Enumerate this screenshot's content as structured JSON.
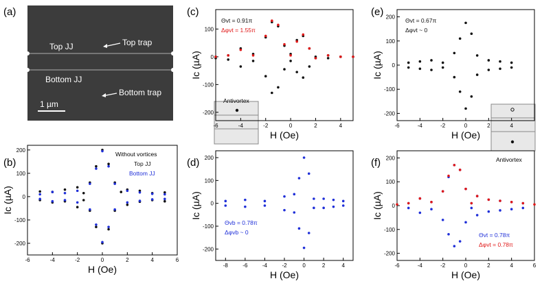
{
  "colors": {
    "black": "#111111",
    "blue": "#1f2fd8",
    "red": "#e01818",
    "sem_bg": "#3c3c3c"
  },
  "panels": {
    "a": {
      "letter": "(a)",
      "label_top_jj": "Top JJ",
      "label_top_trap": "Top trap",
      "label_bottom_jj": "Bottom JJ",
      "label_bottom_trap": "Bottom trap",
      "scale_bar": "1 µm"
    },
    "b": {
      "letter": "(b)",
      "legend_title": "Without vortices",
      "legend_top": "Top JJ",
      "legend_bottom": "Bottom JJ"
    },
    "c": {
      "letter": "(c)",
      "theta": "Θvt = 0.91π",
      "dphi": "Δφvt = 1.55π",
      "inset": "Antivortex"
    },
    "d": {
      "letter": "(d)",
      "theta": "Θvb = 0.78π",
      "dphi": "Δφvb ~ 0"
    },
    "e": {
      "letter": "(e)",
      "theta": "Θvt = 0.67π",
      "dphi": "Δφvt ~ 0",
      "inset": "Antivortex"
    },
    "f": {
      "letter": "(f)",
      "theta": "Θvt = 0.78π",
      "dphi": "Δφvt = 0.78π"
    }
  },
  "chart_data": [
    {
      "panel": "b",
      "type": "scatter",
      "xlabel": "H (Oe)",
      "ylabel": "Ic (µA)",
      "xlim": [
        -6,
        6
      ],
      "ylim": [
        -250,
        220
      ],
      "xticks": [
        -6,
        -4,
        -2,
        0,
        2,
        4,
        6
      ],
      "yticks": [
        -200,
        -100,
        0,
        100,
        200
      ],
      "series": [
        {
          "name": "Top JJ",
          "color": "black",
          "points": [
            [
              -5,
              22
            ],
            [
              -4,
              20
            ],
            [
              -3,
              30
            ],
            [
              -2,
              40
            ],
            [
              -1.5,
              15
            ],
            [
              -1,
              60
            ],
            [
              -0.5,
              130
            ],
            [
              0,
              200
            ],
            [
              0.5,
              140
            ],
            [
              1,
              60
            ],
            [
              1.5,
              20
            ],
            [
              2,
              30
            ],
            [
              3,
              25
            ],
            [
              4,
              15
            ],
            [
              5,
              18
            ],
            [
              -5,
              -15
            ],
            [
              -4,
              -25
            ],
            [
              -3,
              -20
            ],
            [
              -2,
              -45
            ],
            [
              -1.5,
              -15
            ],
            [
              -1,
              -60
            ],
            [
              -0.5,
              -130
            ],
            [
              0,
              -200
            ],
            [
              0.5,
              -140
            ],
            [
              1,
              -60
            ],
            [
              2,
              -35
            ],
            [
              3,
              -22
            ],
            [
              4,
              -15
            ],
            [
              5,
              -20
            ]
          ]
        },
        {
          "name": "Bottom JJ",
          "color": "blue",
          "points": [
            [
              -5,
              10
            ],
            [
              -4,
              20
            ],
            [
              -3,
              15
            ],
            [
              -2,
              25
            ],
            [
              -1,
              55
            ],
            [
              -0.5,
              120
            ],
            [
              0,
              195
            ],
            [
              0.5,
              130
            ],
            [
              1,
              55
            ],
            [
              2,
              25
            ],
            [
              3,
              18
            ],
            [
              4,
              12
            ],
            [
              5,
              10
            ],
            [
              -5,
              -10
            ],
            [
              -4,
              -20
            ],
            [
              -3,
              -15
            ],
            [
              -2,
              -25
            ],
            [
              -1,
              -55
            ],
            [
              -0.5,
              -120
            ],
            [
              0,
              -195
            ],
            [
              0.5,
              -130
            ],
            [
              1,
              -55
            ],
            [
              2,
              -25
            ],
            [
              3,
              -18
            ],
            [
              4,
              -12
            ],
            [
              5,
              -10
            ]
          ]
        }
      ]
    },
    {
      "panel": "c",
      "type": "scatter",
      "xlabel": "H (Oe)",
      "ylabel": "Ic (µA)",
      "xlim": [
        -6,
        5
      ],
      "ylim": [
        -230,
        170
      ],
      "xticks": [
        -6,
        -4,
        -2,
        0,
        2,
        4
      ],
      "yticks": [
        -200,
        -100,
        0,
        100
      ],
      "series": [
        {
          "name": "data",
          "color": "black",
          "points": [
            [
              -6,
              0
            ],
            [
              -5,
              5
            ],
            [
              -4,
              30
            ],
            [
              -3,
              10
            ],
            [
              -2,
              70
            ],
            [
              -1.5,
              125
            ],
            [
              -1,
              110
            ],
            [
              -0.5,
              40
            ],
            [
              0,
              10
            ],
            [
              0.5,
              60
            ],
            [
              1,
              75
            ],
            [
              1.5,
              30
            ],
            [
              2,
              -5
            ],
            [
              3,
              5
            ],
            [
              4,
              0
            ],
            [
              5,
              0
            ],
            [
              -6,
              -5
            ],
            [
              -5,
              -10
            ],
            [
              -4,
              -35
            ],
            [
              -3,
              -15
            ],
            [
              -2,
              -70
            ],
            [
              -1.5,
              -130
            ],
            [
              -1,
              -110
            ],
            [
              -0.5,
              -45
            ],
            [
              0,
              -15
            ],
            [
              0.5,
              -55
            ],
            [
              1,
              -75
            ],
            [
              1.5,
              -35
            ],
            [
              2,
              0
            ],
            [
              3,
              -5
            ],
            [
              4,
              0
            ]
          ]
        },
        {
          "name": "fit",
          "color": "red",
          "points": [
            [
              -6,
              0
            ],
            [
              -5,
              5
            ],
            [
              -4,
              25
            ],
            [
              -3,
              5
            ],
            [
              -2,
              75
            ],
            [
              -1.5,
              130
            ],
            [
              -1,
              115
            ],
            [
              -0.5,
              45
            ],
            [
              0,
              5
            ],
            [
              0.5,
              55
            ],
            [
              1,
              80
            ],
            [
              1.5,
              30
            ],
            [
              2,
              -5
            ],
            [
              3,
              5
            ],
            [
              4,
              0
            ],
            [
              5,
              0
            ]
          ]
        }
      ]
    },
    {
      "panel": "d",
      "type": "scatter",
      "xlabel": "H (Oe)",
      "ylabel": "Ic (µA)",
      "xlim": [
        -9,
        5
      ],
      "ylim": [
        -250,
        230
      ],
      "xticks": [
        -8,
        -6,
        -4,
        -2,
        0,
        2,
        4
      ],
      "yticks": [
        -200,
        -100,
        0,
        100,
        200
      ],
      "series": [
        {
          "name": "data",
          "color": "blue",
          "points": [
            [
              -8,
              10
            ],
            [
              -6,
              15
            ],
            [
              -4,
              10
            ],
            [
              -2,
              30
            ],
            [
              -1,
              40
            ],
            [
              -0.5,
              110
            ],
            [
              0,
              200
            ],
            [
              0.5,
              130
            ],
            [
              1,
              20
            ],
            [
              2,
              20
            ],
            [
              3,
              15
            ],
            [
              4,
              10
            ],
            [
              -8,
              -10
            ],
            [
              -6,
              -15
            ],
            [
              -4,
              -10
            ],
            [
              -2,
              -30
            ],
            [
              -1,
              -40
            ],
            [
              -0.5,
              -110
            ],
            [
              0,
              -195
            ],
            [
              0.5,
              -130
            ],
            [
              1,
              -20
            ],
            [
              2,
              -20
            ],
            [
              3,
              -15
            ],
            [
              4,
              -10
            ]
          ]
        }
      ]
    },
    {
      "panel": "e",
      "type": "scatter",
      "xlabel": "H (Oe)",
      "ylabel": "Ic (µA)",
      "xlim": [
        -6,
        6
      ],
      "ylim": [
        -230,
        230
      ],
      "xticks": [
        -6,
        -4,
        -2,
        0,
        2,
        4
      ],
      "yticks": [
        -200,
        -100,
        0,
        100,
        200
      ],
      "series": [
        {
          "name": "data",
          "color": "black",
          "points": [
            [
              -5,
              10
            ],
            [
              -4,
              15
            ],
            [
              -3,
              20
            ],
            [
              -2,
              10
            ],
            [
              -1,
              50
            ],
            [
              -0.5,
              110
            ],
            [
              0,
              175
            ],
            [
              0.5,
              130
            ],
            [
              1,
              40
            ],
            [
              2,
              20
            ],
            [
              3,
              15
            ],
            [
              4,
              10
            ],
            [
              -5,
              -10
            ],
            [
              -4,
              -15
            ],
            [
              -3,
              -20
            ],
            [
              -2,
              -10
            ],
            [
              -1,
              -50
            ],
            [
              -0.5,
              -110
            ],
            [
              0,
              -180
            ],
            [
              0.5,
              -130
            ],
            [
              1,
              -40
            ],
            [
              2,
              -20
            ],
            [
              3,
              -15
            ],
            [
              4,
              -10
            ]
          ]
        }
      ]
    },
    {
      "panel": "f",
      "type": "scatter",
      "xlabel": "H (Oe)",
      "ylabel": "Ic (µA)",
      "xlim": [
        -6,
        6
      ],
      "ylim": [
        -230,
        230
      ],
      "xticks": [
        -6,
        -4,
        -2,
        0,
        2,
        4,
        6
      ],
      "yticks": [
        -200,
        -100,
        0,
        100,
        200
      ],
      "series": [
        {
          "name": "data",
          "color": "blue",
          "points": [
            [
              -5,
              10
            ],
            [
              -4,
              30
            ],
            [
              -3,
              15
            ],
            [
              -2,
              60
            ],
            [
              -1.5,
              120
            ],
            [
              -1,
              170
            ],
            [
              -0.5,
              150
            ],
            [
              0,
              70
            ],
            [
              0.5,
              10
            ],
            [
              1,
              40
            ],
            [
              2,
              25
            ],
            [
              3,
              20
            ],
            [
              4,
              15
            ],
            [
              5,
              10
            ],
            [
              -5,
              -10
            ],
            [
              -4,
              -30
            ],
            [
              -3,
              -15
            ],
            [
              -2,
              -60
            ],
            [
              -1.5,
              -120
            ],
            [
              -1,
              -170
            ],
            [
              -0.5,
              -150
            ],
            [
              0,
              -70
            ],
            [
              0.5,
              -10
            ],
            [
              1,
              -40
            ],
            [
              2,
              -25
            ],
            [
              3,
              -20
            ],
            [
              4,
              -15
            ],
            [
              5,
              -10
            ]
          ]
        },
        {
          "name": "fit",
          "color": "red",
          "points": [
            [
              -6,
              5
            ],
            [
              -5,
              10
            ],
            [
              -4,
              30
            ],
            [
              -3,
              15
            ],
            [
              -2,
              60
            ],
            [
              -1.5,
              125
            ],
            [
              -1,
              170
            ],
            [
              -0.5,
              150
            ],
            [
              0,
              70
            ],
            [
              0.5,
              10
            ],
            [
              1,
              40
            ],
            [
              2,
              25
            ],
            [
              3,
              20
            ],
            [
              4,
              15
            ],
            [
              5,
              10
            ],
            [
              6,
              5
            ]
          ]
        }
      ]
    }
  ]
}
